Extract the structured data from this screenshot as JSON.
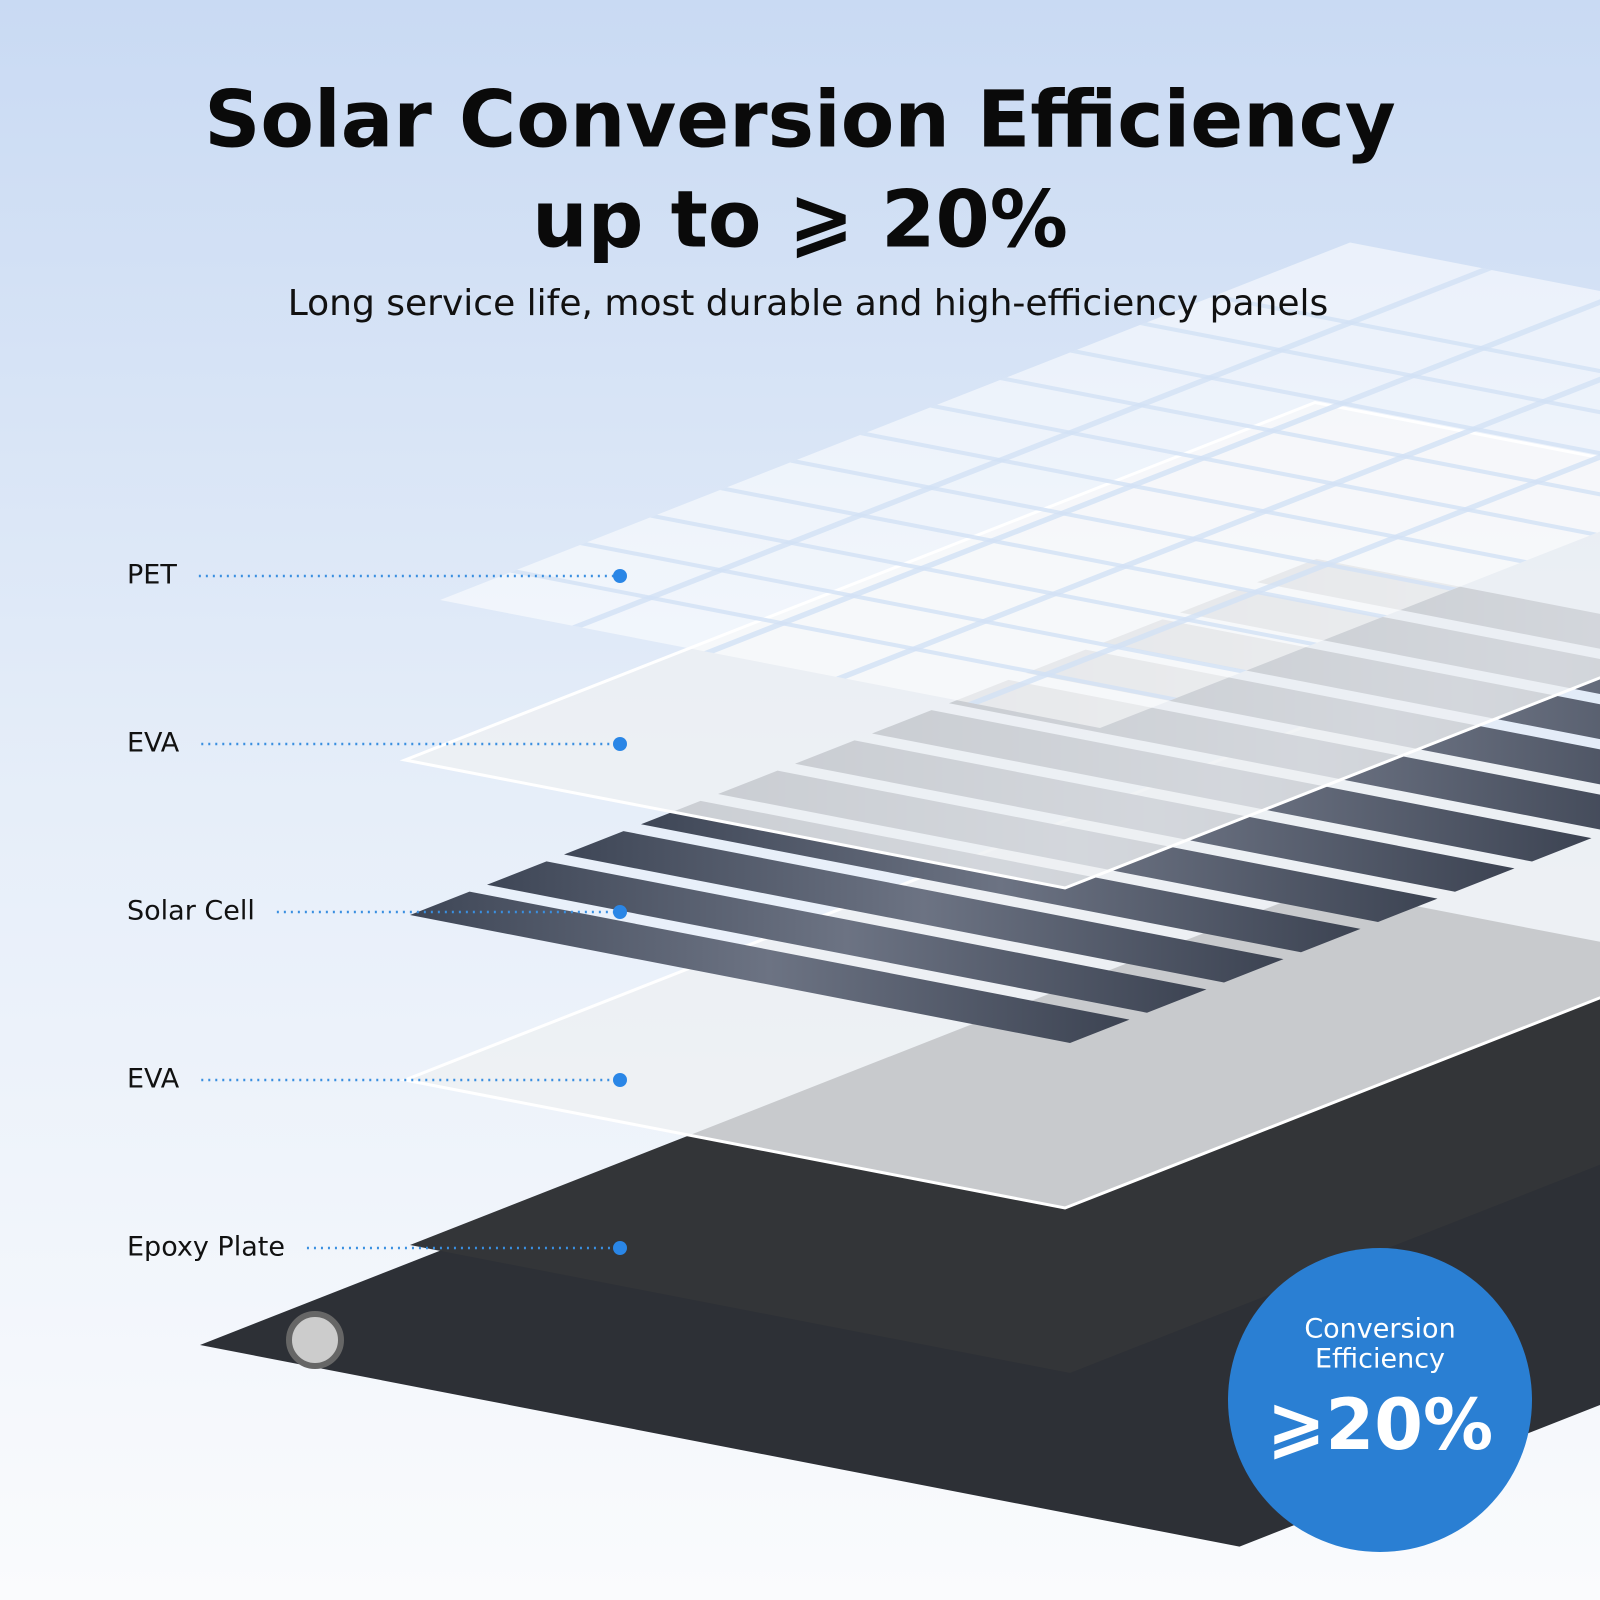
{
  "header": {
    "title_line1": "Solar Conversion Efficiency",
    "title_line2": "up to ⩾ 20%",
    "subtitle": "Long service life, most durable and high-efficiency panels"
  },
  "layers": [
    {
      "label": "PET"
    },
    {
      "label": "EVA"
    },
    {
      "label": "Solar Cell"
    },
    {
      "label": "EVA"
    },
    {
      "label": "Epoxy Plate"
    }
  ],
  "badge": {
    "line1": "Conversion",
    "line2": "Efficiency",
    "value": "⩾20%"
  }
}
